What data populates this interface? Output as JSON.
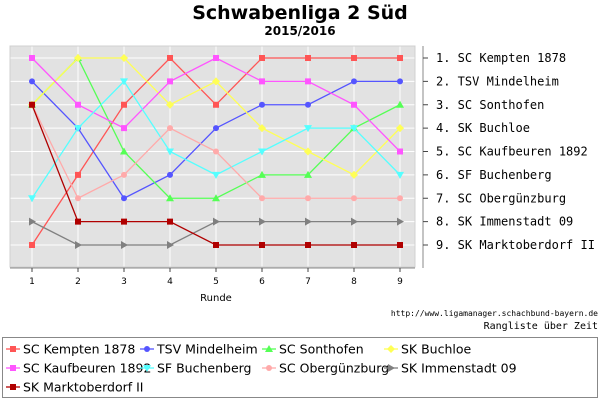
{
  "chart_data": {
    "type": "line",
    "title": "Schwabenliga 2 Süd",
    "subtitle": "2015/2016",
    "xlabel": "Runde",
    "x": [
      1,
      2,
      3,
      4,
      5,
      6,
      7,
      8,
      9
    ],
    "ylim": [
      1,
      9
    ],
    "y_inverted": true,
    "grid": true,
    "right_labels": [
      "1. SC Kempten 1878",
      "2. TSV Mindelheim",
      "3. SC Sonthofen",
      "4. SK Buchloe",
      "5. SC Kaufbeuren 1892",
      "6. SF Buchenberg",
      "7. SC Obergünzburg",
      "8. SK Immenstadt 09",
      "9. SK Marktoberdorf II"
    ],
    "source": "http://www.ligamanager.schachbund-bayern.de",
    "caption": "Rangliste über Zeit",
    "legend_position": "bottom",
    "series": [
      {
        "name": "SC Kempten 1878",
        "color": "#ff5555",
        "marker": "square",
        "values": [
          9,
          6,
          3,
          1,
          3,
          1,
          1,
          1,
          1
        ]
      },
      {
        "name": "TSV Mindelheim",
        "color": "#5555ff",
        "marker": "circle",
        "values": [
          2,
          4,
          7,
          6,
          4,
          3,
          3,
          2,
          2
        ]
      },
      {
        "name": "SC Sonthofen",
        "color": "#55ff55",
        "marker": "triangle-up",
        "values": [
          3,
          1,
          5,
          7,
          7,
          6,
          6,
          4,
          3
        ]
      },
      {
        "name": "SK Buchloe",
        "color": "#ffff55",
        "marker": "diamond",
        "values": [
          3,
          1,
          1,
          3,
          2,
          4,
          5,
          6,
          4
        ]
      },
      {
        "name": "SC Kaufbeuren 1892",
        "color": "#ff55ff",
        "marker": "square",
        "values": [
          1,
          3,
          4,
          2,
          1,
          2,
          2,
          3,
          5
        ]
      },
      {
        "name": "SF Buchenberg",
        "color": "#55ffff",
        "marker": "triangle-down",
        "values": [
          7,
          4,
          2,
          5,
          6,
          5,
          4,
          4,
          6
        ]
      },
      {
        "name": "SC Obergünzburg",
        "color": "#ffaaaa",
        "marker": "circle",
        "values": [
          3,
          7,
          6,
          4,
          5,
          7,
          7,
          7,
          7
        ]
      },
      {
        "name": "SK Immenstadt 09",
        "color": "#808080",
        "marker": "triangle-right",
        "values": [
          8,
          9,
          9,
          9,
          8,
          8,
          8,
          8,
          8
        ]
      },
      {
        "name": "SK Marktoberdorf II",
        "color": "#b00000",
        "marker": "square",
        "values": [
          3,
          8,
          8,
          8,
          9,
          9,
          9,
          9,
          9
        ]
      }
    ]
  }
}
